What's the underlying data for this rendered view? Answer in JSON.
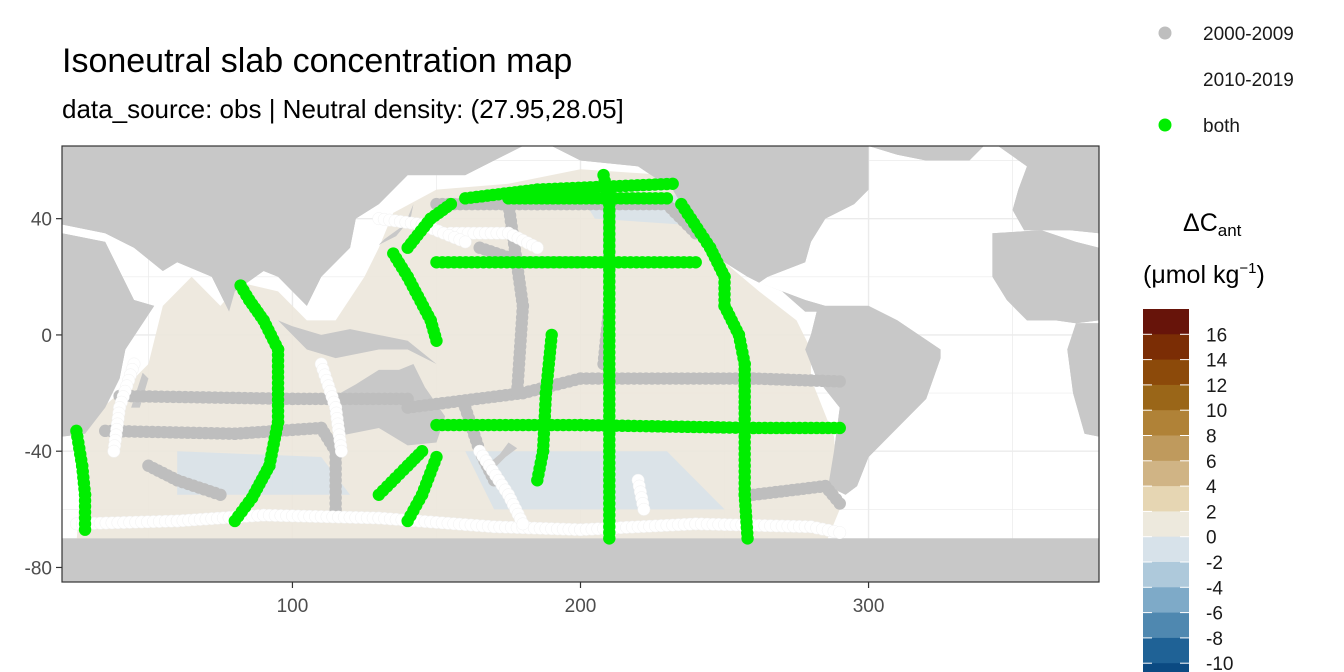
{
  "chart_data": {
    "type": "scatter",
    "title": "Isoneutral slab concentration map",
    "subtitle": "data_source: obs | Neutral density: (27.95,28.05]",
    "xlim": [
      20,
      380
    ],
    "ylim": [
      -85,
      65
    ],
    "x_ticks": [
      "100",
      "200",
      "300"
    ],
    "x_tick_values": [
      100,
      200,
      300
    ],
    "y_ticks": [
      "40",
      "0",
      "-40",
      "-80"
    ],
    "y_tick_values": [
      40,
      0,
      -40,
      -80
    ],
    "grid": true,
    "legend_placement": "right",
    "series": [
      {
        "name": "2000-2009",
        "color": "#bebebe"
      },
      {
        "name": "2010-2019",
        "color": "#ffffff"
      },
      {
        "name": "both",
        "color": "#00ee00"
      }
    ],
    "colorbar": {
      "title": "ΔCant",
      "title_main": "ΔC",
      "title_sub": "ant",
      "unit": "(μmol kg",
      "unit_sup": "−1",
      "unit_end": ")",
      "labels": [
        "16",
        "14",
        "12",
        "10",
        "8",
        "6",
        "4",
        "2",
        "0",
        "-2",
        "-4",
        "-6",
        "-8",
        "-10"
      ],
      "colors": [
        "#67140a",
        "#7b2d05",
        "#8c4a0a",
        "#9a6618",
        "#b08237",
        "#bf9a5d",
        "#d0b485",
        "#e6d6b3",
        "#ede9dd",
        "#d7e2ea",
        "#aec9db",
        "#7eaac8",
        "#4f88b0",
        "#1f6296",
        "#0b4a82"
      ]
    },
    "land_color": "#c8c8c8",
    "ocean_fill_color": "#ece7dc",
    "tracks": {
      "both": [
        [
          [
            25,
            -33
          ],
          [
            27,
            -45
          ],
          [
            28,
            -55
          ],
          [
            28,
            -67
          ]
        ],
        [
          [
            80,
            -64
          ],
          [
            86,
            -56
          ],
          [
            92,
            -45
          ],
          [
            95,
            -30
          ],
          [
            95,
            -5
          ],
          [
            90,
            5
          ],
          [
            85,
            12
          ],
          [
            82,
            17
          ]
        ],
        [
          [
            140,
            -64
          ],
          [
            145,
            -55
          ],
          [
            150,
            -42
          ]
        ],
        [
          [
            150,
            -31
          ],
          [
            200,
            -31
          ],
          [
            260,
            -32
          ],
          [
            290,
            -32
          ]
        ],
        [
          [
            210,
            -70
          ],
          [
            210,
            -32
          ],
          [
            210,
            0
          ],
          [
            210,
            45
          ],
          [
            208,
            55
          ]
        ],
        [
          [
            175,
            47
          ],
          [
            200,
            47
          ],
          [
            230,
            47
          ]
        ],
        [
          [
            160,
            47
          ],
          [
            185,
            50
          ],
          [
            232,
            52
          ]
        ],
        [
          [
            235,
            45
          ],
          [
            245,
            30
          ],
          [
            250,
            20
          ],
          [
            250,
            10
          ],
          [
            255,
            0
          ],
          [
            257,
            -10
          ],
          [
            257,
            -25
          ],
          [
            257,
            -55
          ],
          [
            258,
            -70
          ]
        ],
        [
          [
            150,
            25
          ],
          [
            205,
            25
          ],
          [
            240,
            25
          ]
        ],
        [
          [
            140,
            30
          ],
          [
            148,
            40
          ],
          [
            155,
            45
          ]
        ],
        [
          [
            135,
            28
          ],
          [
            140,
            20
          ],
          [
            148,
            5
          ],
          [
            150,
            -2
          ]
        ],
        [
          [
            190,
            0
          ],
          [
            188,
            -20
          ],
          [
            187,
            -40
          ],
          [
            185,
            -50
          ]
        ],
        [
          [
            130,
            -55
          ],
          [
            140,
            -45
          ],
          [
            145,
            -40
          ]
        ]
      ],
      "old": [
        [
          [
            40,
            -21
          ],
          [
            100,
            -22
          ],
          [
            140,
            -22
          ]
        ],
        [
          [
            35,
            -33
          ],
          [
            80,
            -34
          ],
          [
            110,
            -32
          ],
          [
            115,
            -40
          ],
          [
            115,
            -60
          ]
        ],
        [
          [
            140,
            -25
          ],
          [
            180,
            -20
          ],
          [
            200,
            -15
          ],
          [
            260,
            -15
          ],
          [
            290,
            -16
          ]
        ],
        [
          [
            175,
            45
          ],
          [
            180,
            10
          ],
          [
            178,
            -20
          ]
        ],
        [
          [
            210,
            50
          ],
          [
            210,
            10
          ],
          [
            208,
            -10
          ]
        ],
        [
          [
            150,
            45
          ],
          [
            185,
            45
          ],
          [
            230,
            45
          ],
          [
            240,
            35
          ]
        ],
        [
          [
            165,
            30
          ],
          [
            180,
            25
          ],
          [
            200,
            25
          ]
        ],
        [
          [
            260,
            -55
          ],
          [
            285,
            -52
          ],
          [
            290,
            -58
          ]
        ],
        [
          [
            160,
            -25
          ],
          [
            165,
            -40
          ],
          [
            170,
            -50
          ]
        ],
        [
          [
            50,
            -45
          ],
          [
            60,
            -50
          ],
          [
            75,
            -55
          ]
        ]
      ],
      "new": [
        [
          [
            25,
            -65
          ],
          [
            60,
            -64
          ],
          [
            90,
            -62
          ],
          [
            130,
            -63
          ],
          [
            170,
            -66
          ],
          [
            200,
            -67
          ],
          [
            240,
            -65
          ],
          [
            280,
            -66
          ],
          [
            290,
            -68
          ]
        ],
        [
          [
            45,
            -10
          ],
          [
            40,
            -25
          ],
          [
            38,
            -40
          ]
        ],
        [
          [
            110,
            -10
          ],
          [
            115,
            -25
          ],
          [
            117,
            -40
          ]
        ],
        [
          [
            165,
            -40
          ],
          [
            175,
            -55
          ],
          [
            180,
            -65
          ]
        ],
        [
          [
            155,
            35
          ],
          [
            175,
            35
          ],
          [
            185,
            30
          ]
        ],
        [
          [
            130,
            40
          ],
          [
            145,
            38
          ],
          [
            160,
            32
          ]
        ],
        [
          [
            220,
            -50
          ],
          [
            222,
            -60
          ]
        ]
      ]
    }
  }
}
